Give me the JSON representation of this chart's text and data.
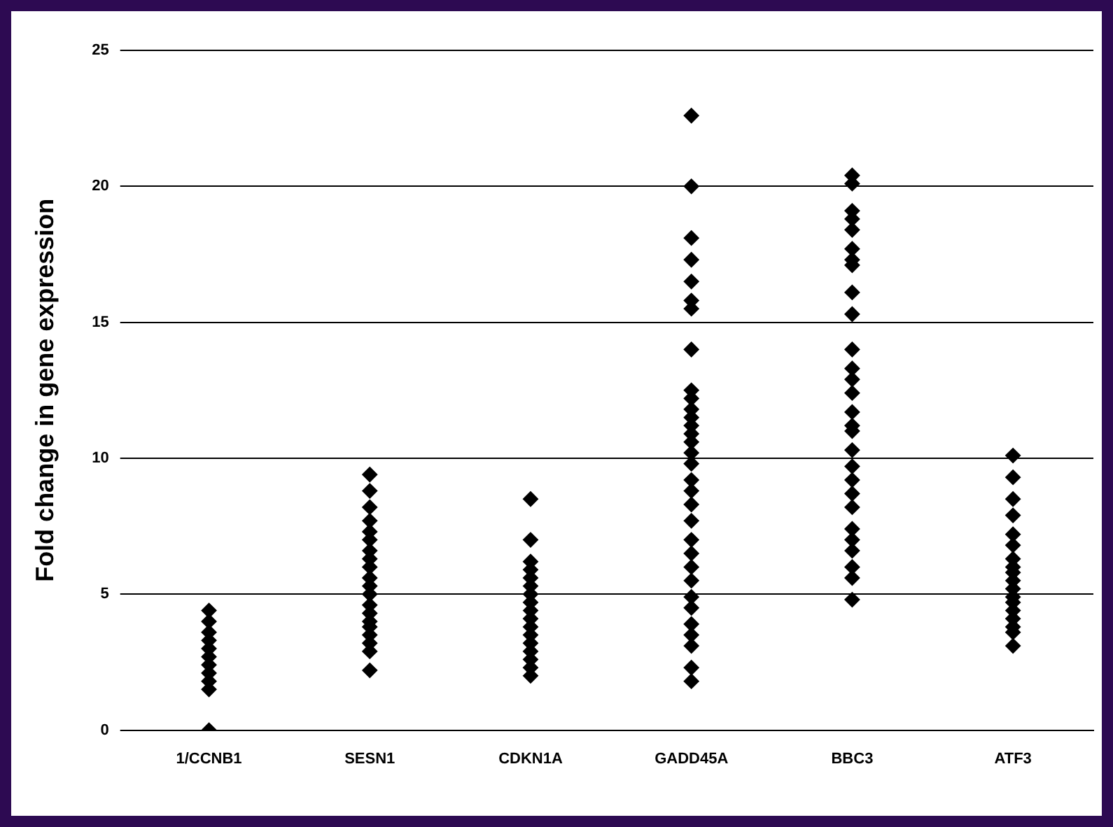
{
  "chart_data": {
    "type": "scatter",
    "ylabel": "Fold change in gene expression",
    "categories": [
      "1/CCNB1",
      "SESN1",
      "CDKN1A",
      "GADD45A",
      "BBC3",
      "ATF3"
    ],
    "series": [
      {
        "color": "#000000",
        "x": [
          "1/CCNB1",
          "1/CCNB1",
          "1/CCNB1",
          "1/CCNB1",
          "1/CCNB1",
          "1/CCNB1",
          "1/CCNB1",
          "1/CCNB1",
          "1/CCNB1",
          "1/CCNB1",
          "1/CCNB1"
        ],
        "values": [
          0,
          1.5,
          1.8,
          2.1,
          2.4,
          2.7,
          3.0,
          3.3,
          3.6,
          4.0,
          4.4
        ]
      },
      {
        "color": "#000000",
        "x": [
          "SESN1",
          "SESN1",
          "SESN1",
          "SESN1",
          "SESN1",
          "SESN1",
          "SESN1",
          "SESN1",
          "SESN1",
          "SESN1",
          "SESN1",
          "SESN1",
          "SESN1",
          "SESN1",
          "SESN1",
          "SESN1",
          "SESN1",
          "SESN1",
          "SESN1",
          "SESN1"
        ],
        "values": [
          2.2,
          2.9,
          3.2,
          3.5,
          3.8,
          4.0,
          4.3,
          4.6,
          5.0,
          5.3,
          5.6,
          6.0,
          6.3,
          6.6,
          7.0,
          7.3,
          7.7,
          8.2,
          8.8,
          9.4
        ]
      },
      {
        "color": "#000000",
        "x": [
          "CDKN1A",
          "CDKN1A",
          "CDKN1A",
          "CDKN1A",
          "CDKN1A",
          "CDKN1A",
          "CDKN1A",
          "CDKN1A",
          "CDKN1A",
          "CDKN1A",
          "CDKN1A",
          "CDKN1A",
          "CDKN1A",
          "CDKN1A",
          "CDKN1A",
          "CDKN1A",
          "CDKN1A"
        ],
        "values": [
          2.0,
          2.3,
          2.6,
          2.9,
          3.2,
          3.5,
          3.8,
          4.1,
          4.4,
          4.7,
          5.0,
          5.3,
          5.6,
          5.9,
          6.2,
          7.0,
          8.5
        ]
      },
      {
        "color": "#000000",
        "x": [
          "GADD45A",
          "GADD45A",
          "GADD45A",
          "GADD45A",
          "GADD45A",
          "GADD45A",
          "GADD45A",
          "GADD45A",
          "GADD45A",
          "GADD45A",
          "GADD45A",
          "GADD45A",
          "GADD45A",
          "GADD45A",
          "GADD45A",
          "GADD45A",
          "GADD45A",
          "GADD45A",
          "GADD45A",
          "GADD45A",
          "GADD45A",
          "GADD45A",
          "GADD45A",
          "GADD45A",
          "GADD45A",
          "GADD45A",
          "GADD45A",
          "GADD45A",
          "GADD45A",
          "GADD45A",
          "GADD45A",
          "GADD45A"
        ],
        "values": [
          22.6,
          20.0,
          18.1,
          17.3,
          16.5,
          15.8,
          15.5,
          14.0,
          12.5,
          12.2,
          11.8,
          11.5,
          11.2,
          10.9,
          10.6,
          10.2,
          9.8,
          9.2,
          8.8,
          8.3,
          7.7,
          7.0,
          6.5,
          6.0,
          5.5,
          4.9,
          4.5,
          3.9,
          3.5,
          3.1,
          2.3,
          1.8
        ]
      },
      {
        "color": "#000000",
        "x": [
          "BBC3",
          "BBC3",
          "BBC3",
          "BBC3",
          "BBC3",
          "BBC3",
          "BBC3",
          "BBC3",
          "BBC3",
          "BBC3",
          "BBC3",
          "BBC3",
          "BBC3",
          "BBC3",
          "BBC3",
          "BBC3",
          "BBC3",
          "BBC3",
          "BBC3",
          "BBC3",
          "BBC3",
          "BBC3",
          "BBC3",
          "BBC3",
          "BBC3",
          "BBC3",
          "BBC3",
          "BBC3"
        ],
        "values": [
          20.4,
          20.1,
          19.1,
          18.8,
          18.4,
          17.7,
          17.3,
          17.1,
          16.1,
          15.3,
          14.0,
          13.3,
          12.9,
          12.4,
          11.7,
          11.2,
          11.0,
          10.3,
          9.7,
          9.2,
          8.7,
          8.2,
          7.4,
          7.0,
          6.6,
          6.0,
          5.6,
          4.8
        ]
      },
      {
        "color": "#000000",
        "x": [
          "ATF3",
          "ATF3",
          "ATF3",
          "ATF3",
          "ATF3",
          "ATF3",
          "ATF3",
          "ATF3",
          "ATF3",
          "ATF3",
          "ATF3",
          "ATF3",
          "ATF3",
          "ATF3",
          "ATF3",
          "ATF3",
          "ATF3",
          "ATF3"
        ],
        "values": [
          10.1,
          9.3,
          8.5,
          7.9,
          7.2,
          6.8,
          6.3,
          6.0,
          5.8,
          5.5,
          5.2,
          4.9,
          4.7,
          4.4,
          4.1,
          3.8,
          3.6,
          3.1
        ]
      }
    ],
    "ylim": [
      0,
      25
    ],
    "yticks": [
      0,
      5,
      10,
      15,
      20,
      25
    ],
    "grid": "y",
    "marker": "diamond"
  }
}
